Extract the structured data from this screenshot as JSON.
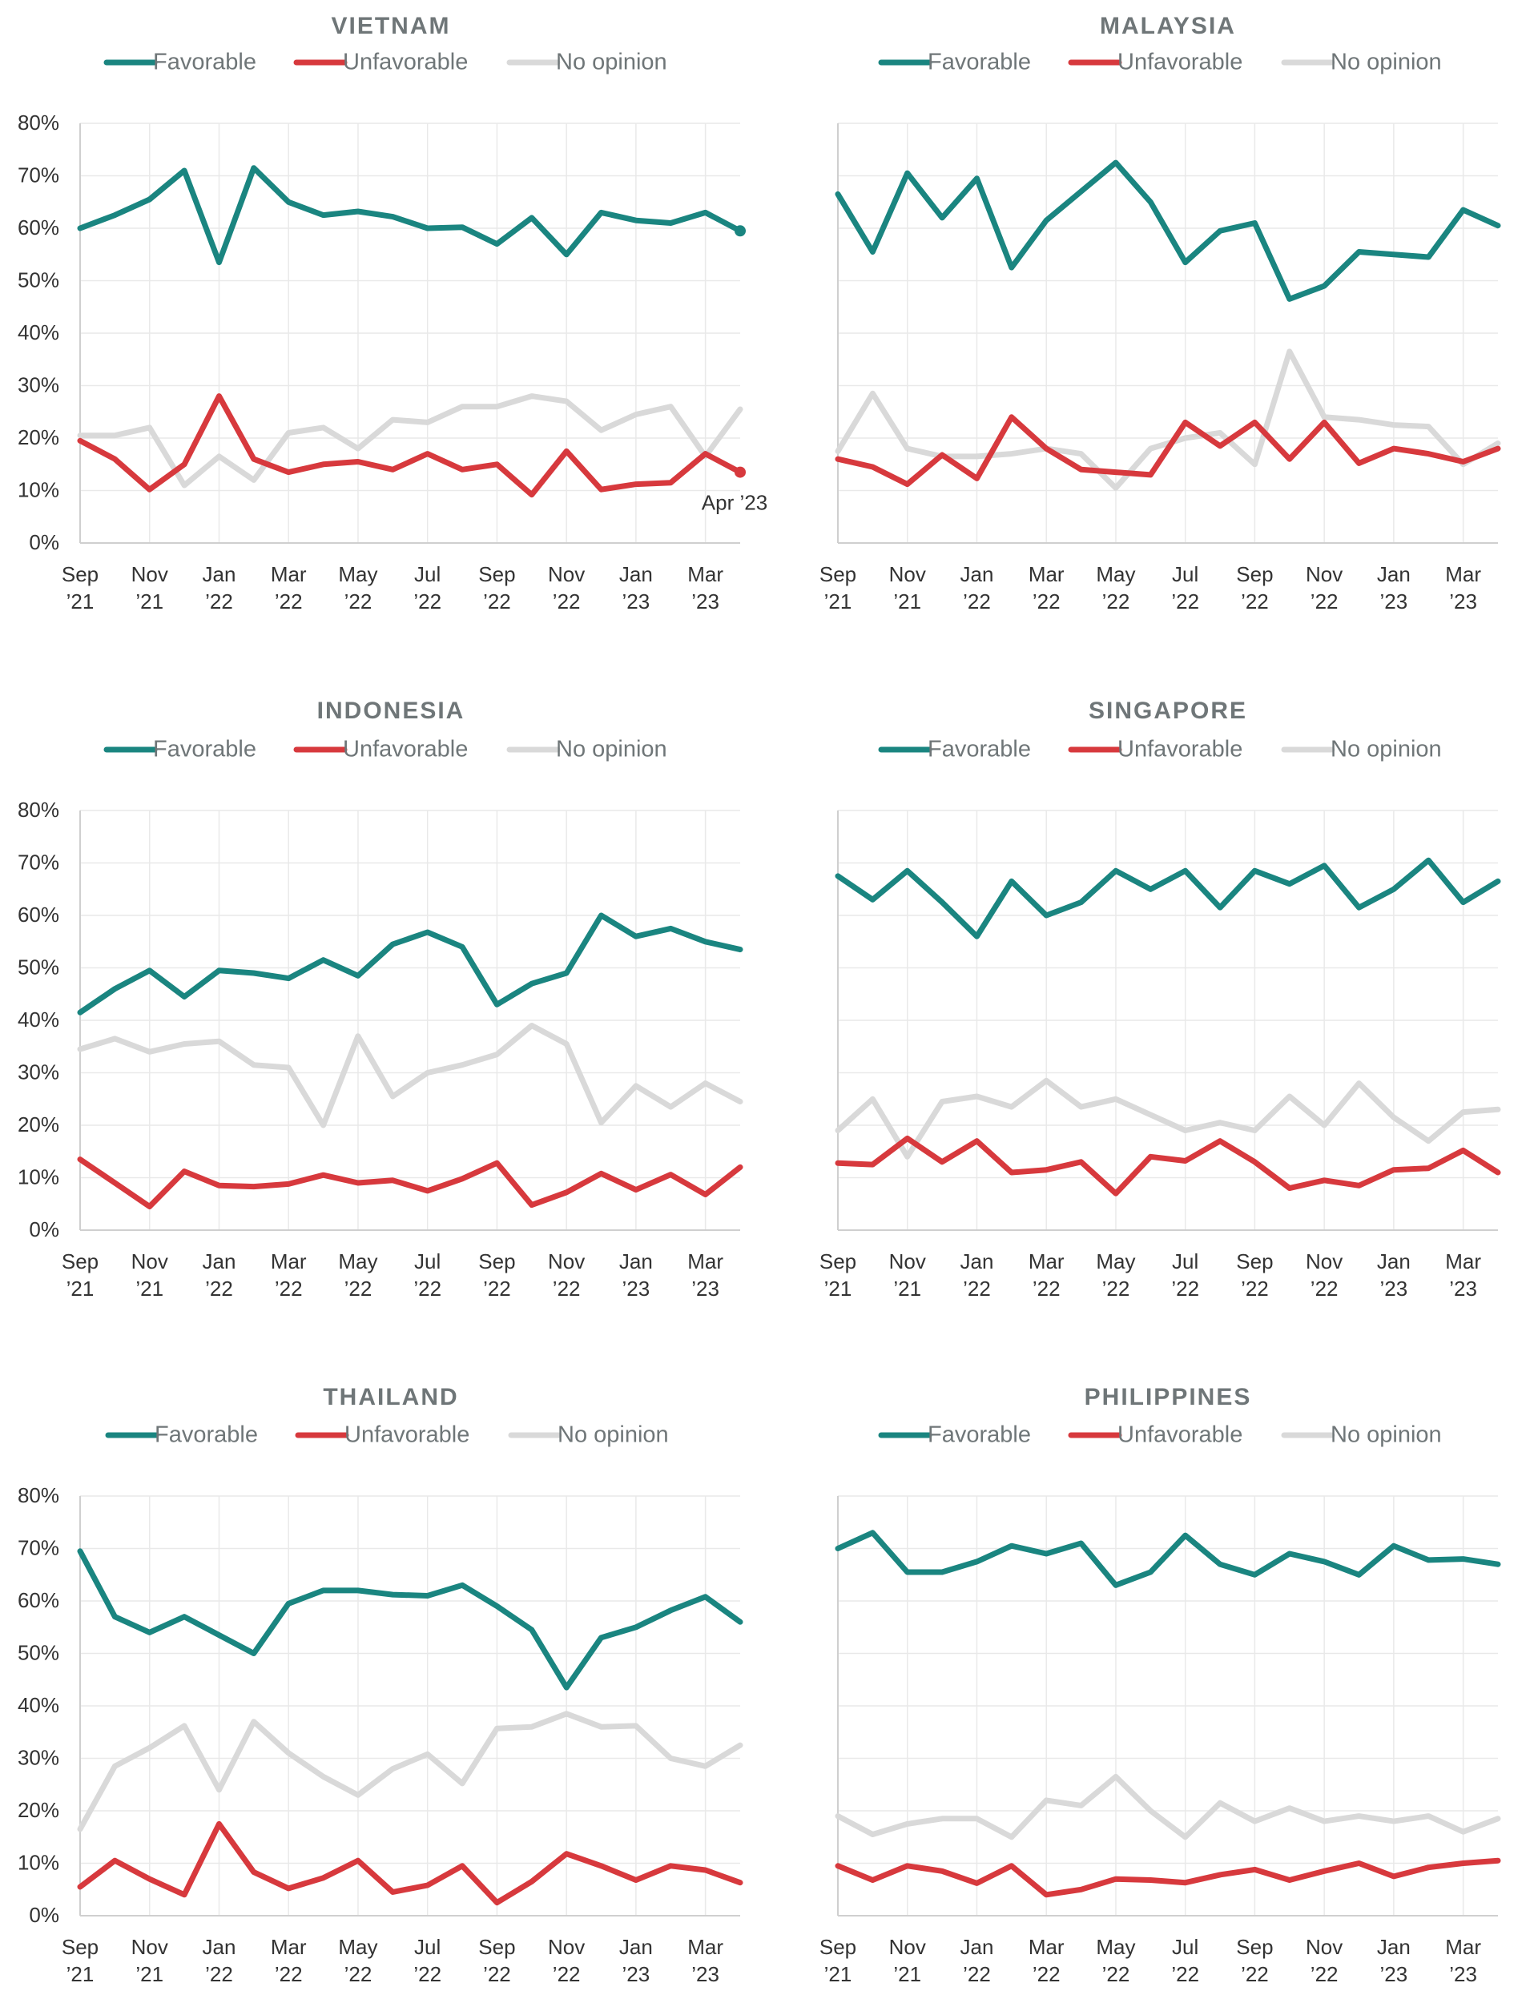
{
  "colors": {
    "favorable": "#1a8580",
    "unfavorable": "#d7393d",
    "no_opinion": "#d9d9d9",
    "title": "#6f7678",
    "tick": "#333333",
    "grid": "#e9e9e9"
  },
  "legend_labels": [
    "Favorable",
    "Unfavorable",
    "No opinion"
  ],
  "x_tick_labels": [
    [
      "Sep",
      "’21"
    ],
    [
      "Nov",
      "’21"
    ],
    [
      "Jan",
      "’22"
    ],
    [
      "Mar",
      "’22"
    ],
    [
      "May",
      "’22"
    ],
    [
      "Jul",
      "’22"
    ],
    [
      "Sep",
      "’22"
    ],
    [
      "Nov",
      "’22"
    ],
    [
      "Jan",
      "’23"
    ],
    [
      "Mar",
      "’23"
    ]
  ],
  "y_tick_labels": [
    "0%",
    "10%",
    "20%",
    "30%",
    "40%",
    "50%",
    "60%",
    "70%",
    "80%"
  ],
  "chart_data": [
    {
      "type": "line",
      "title": "VIETNAM",
      "x": [
        "2021-09",
        "2021-10",
        "2021-11",
        "2021-12",
        "2022-01",
        "2022-02",
        "2022-03",
        "2022-04",
        "2022-05",
        "2022-06",
        "2022-07",
        "2022-08",
        "2022-09",
        "2022-10",
        "2022-11",
        "2022-12",
        "2023-01",
        "2023-02",
        "2023-03",
        "2023-04"
      ],
      "ylim": [
        0,
        80
      ],
      "annotation": "Apr ’23",
      "series": [
        {
          "name": "Favorable",
          "values": [
            60,
            62.5,
            65.5,
            71,
            53.5,
            71.5,
            65,
            62.5,
            63.2,
            62.2,
            60,
            60.2,
            57,
            62,
            55,
            63,
            61.5,
            61,
            63,
            59.5
          ]
        },
        {
          "name": "Unfavorable",
          "values": [
            19.5,
            16,
            10.2,
            15,
            28,
            16,
            13.5,
            15,
            15.5,
            14,
            17,
            14,
            15,
            9.2,
            17.5,
            10.2,
            11.2,
            11.5,
            17,
            13.5
          ]
        },
        {
          "name": "No opinion",
          "values": [
            20.5,
            20.5,
            22,
            11,
            16.5,
            12,
            21,
            22,
            18,
            23.5,
            23,
            26,
            26,
            28,
            27,
            21.5,
            24.5,
            26,
            16.5,
            25.5
          ]
        }
      ]
    },
    {
      "type": "line",
      "title": "MALAYSIA",
      "x": [
        "2021-09",
        "2021-10",
        "2021-11",
        "2021-12",
        "2022-01",
        "2022-02",
        "2022-03",
        "2022-04",
        "2022-05",
        "2022-06",
        "2022-07",
        "2022-08",
        "2022-09",
        "2022-10",
        "2022-11",
        "2022-12",
        "2023-01",
        "2023-02",
        "2023-03",
        "2023-04"
      ],
      "ylim": [
        0,
        80
      ],
      "series": [
        {
          "name": "Favorable",
          "values": [
            66.5,
            55.5,
            70.5,
            62,
            69.5,
            52.5,
            61.5,
            67,
            72.5,
            65,
            53.5,
            59.5,
            61,
            46.5,
            49,
            55.5,
            55,
            54.5,
            63.5,
            60.5
          ]
        },
        {
          "name": "Unfavorable",
          "values": [
            16,
            14.5,
            11.2,
            16.8,
            12.3,
            24,
            18,
            14,
            13.5,
            13,
            23,
            18.5,
            23,
            16,
            23,
            15.2,
            18,
            17,
            15.5,
            18
          ]
        },
        {
          "name": "No opinion",
          "values": [
            17.5,
            28.5,
            18,
            16.5,
            16.5,
            17,
            18,
            17,
            10.5,
            18,
            20,
            21,
            15,
            36.5,
            24,
            23.5,
            22.5,
            22.2,
            15,
            19
          ]
        }
      ]
    },
    {
      "type": "line",
      "title": "INDONESIA",
      "x": [
        "2021-09",
        "2021-10",
        "2021-11",
        "2021-12",
        "2022-01",
        "2022-02",
        "2022-03",
        "2022-04",
        "2022-05",
        "2022-06",
        "2022-07",
        "2022-08",
        "2022-09",
        "2022-10",
        "2022-11",
        "2022-12",
        "2023-01",
        "2023-02",
        "2023-03",
        "2023-04"
      ],
      "ylim": [
        0,
        80
      ],
      "series": [
        {
          "name": "Favorable",
          "values": [
            41.5,
            46,
            49.5,
            44.5,
            49.5,
            49,
            48,
            51.5,
            48.5,
            54.5,
            56.8,
            54,
            43,
            47,
            49,
            60,
            56,
            57.5,
            55,
            53.5
          ]
        },
        {
          "name": "Unfavorable",
          "values": [
            13.5,
            9,
            4.5,
            11.2,
            8.5,
            8.3,
            8.8,
            10.5,
            9,
            9.5,
            7.5,
            9.8,
            12.8,
            4.8,
            7.2,
            10.8,
            7.7,
            10.6,
            6.8,
            12
          ]
        },
        {
          "name": "No opinion",
          "values": [
            34.5,
            36.5,
            34,
            35.5,
            36,
            31.5,
            31,
            20,
            37,
            25.5,
            30,
            31.5,
            33.5,
            39,
            35.5,
            20.5,
            27.5,
            23.5,
            28,
            24.5
          ]
        }
      ]
    },
    {
      "type": "line",
      "title": "SINGAPORE",
      "x": [
        "2021-09",
        "2021-10",
        "2021-11",
        "2021-12",
        "2022-01",
        "2022-02",
        "2022-03",
        "2022-04",
        "2022-05",
        "2022-06",
        "2022-07",
        "2022-08",
        "2022-09",
        "2022-10",
        "2022-11",
        "2022-12",
        "2023-01",
        "2023-02",
        "2023-03",
        "2023-04"
      ],
      "ylim": [
        0,
        80
      ],
      "series": [
        {
          "name": "Favorable",
          "values": [
            67.5,
            63,
            68.5,
            62.5,
            56,
            66.5,
            60,
            62.5,
            68.5,
            65,
            68.5,
            61.5,
            68.5,
            66,
            69.5,
            61.5,
            65,
            70.5,
            62.5,
            66.5
          ]
        },
        {
          "name": "Unfavorable",
          "values": [
            12.8,
            12.5,
            17.5,
            13,
            17,
            11,
            11.5,
            13,
            7,
            14,
            13.2,
            17,
            13,
            8,
            9.5,
            8.5,
            11.5,
            11.8,
            15.2,
            11
          ]
        },
        {
          "name": "No opinion",
          "values": [
            19,
            25,
            14,
            24.5,
            25.5,
            23.5,
            28.5,
            23.5,
            25,
            22,
            19,
            20.5,
            19,
            25.5,
            20,
            28,
            21.5,
            17,
            22.5,
            23
          ]
        }
      ]
    },
    {
      "type": "line",
      "title": "THAILAND",
      "x": [
        "2021-09",
        "2021-10",
        "2021-11",
        "2021-12",
        "2022-01",
        "2022-02",
        "2022-03",
        "2022-04",
        "2022-05",
        "2022-06",
        "2022-07",
        "2022-08",
        "2022-09",
        "2022-10",
        "2022-11",
        "2022-12",
        "2023-01",
        "2023-02",
        "2023-03",
        "2023-04"
      ],
      "ylim": [
        0,
        80
      ],
      "series": [
        {
          "name": "Favorable",
          "values": [
            69.5,
            57,
            54,
            57,
            53.5,
            50,
            59.5,
            62,
            62,
            61.2,
            61,
            63,
            59,
            54.5,
            43.5,
            53,
            55,
            58.2,
            60.8,
            56
          ]
        },
        {
          "name": "Unfavorable",
          "values": [
            5.5,
            10.5,
            7,
            4,
            17.5,
            8.3,
            5.2,
            7.2,
            10.5,
            4.5,
            5.8,
            9.5,
            2.5,
            6.5,
            11.8,
            9.5,
            6.8,
            9.5,
            8.7,
            6.3
          ]
        },
        {
          "name": "No opinion",
          "values": [
            16.5,
            28.5,
            32,
            36.2,
            24,
            37,
            31,
            26.5,
            23,
            28,
            30.8,
            25.2,
            35.7,
            36,
            38.5,
            36,
            36.2,
            30,
            28.5,
            32.5
          ]
        }
      ]
    },
    {
      "type": "line",
      "title": "PHILIPPINES",
      "x": [
        "2021-09",
        "2021-10",
        "2021-11",
        "2021-12",
        "2022-01",
        "2022-02",
        "2022-03",
        "2022-04",
        "2022-05",
        "2022-06",
        "2022-07",
        "2022-08",
        "2022-09",
        "2022-10",
        "2022-11",
        "2022-12",
        "2023-01",
        "2023-02",
        "2023-03",
        "2023-04"
      ],
      "ylim": [
        0,
        80
      ],
      "series": [
        {
          "name": "Favorable",
          "values": [
            70,
            73,
            65.5,
            65.5,
            67.5,
            70.5,
            69,
            71,
            63,
            65.5,
            72.5,
            67,
            65,
            69,
            67.5,
            65,
            70.5,
            67.8,
            68,
            67
          ]
        },
        {
          "name": "Unfavorable",
          "values": [
            9.5,
            6.8,
            9.5,
            8.5,
            6.2,
            9.5,
            4,
            5,
            7,
            6.8,
            6.3,
            7.8,
            8.8,
            6.8,
            8.5,
            10,
            7.5,
            9.2,
            10,
            10.5
          ]
        },
        {
          "name": "No opinion",
          "values": [
            19,
            15.5,
            17.5,
            18.5,
            18.5,
            15,
            22,
            21,
            26.5,
            20,
            15,
            21.5,
            18,
            20.5,
            18,
            19,
            18,
            19,
            16,
            18.5
          ]
        }
      ]
    }
  ]
}
